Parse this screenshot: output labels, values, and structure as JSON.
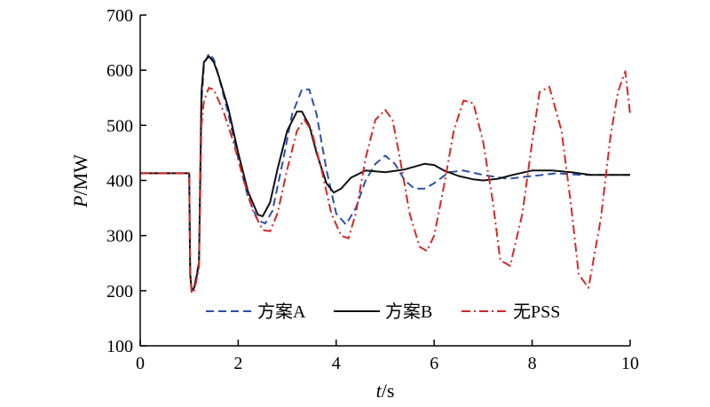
{
  "chart_data": {
    "type": "line",
    "xlabel_var": "t",
    "xlabel_unit": "/s",
    "ylabel_var": "P",
    "ylabel_unit": "/MW",
    "xlim": [
      0,
      10
    ],
    "ylim": [
      100,
      700
    ],
    "xticks": [
      0,
      2,
      4,
      6,
      8,
      10
    ],
    "yticks": [
      100,
      200,
      300,
      400,
      500,
      600,
      700
    ],
    "grid": false,
    "legend_position": "bottom-center",
    "series": [
      {
        "name": "方案A",
        "color": "#2b4fa8",
        "dash": "dashed",
        "x": [
          0,
          1.0,
          1.02,
          1.05,
          1.1,
          1.15,
          1.2,
          1.25,
          1.3,
          1.4,
          1.5,
          1.6,
          1.8,
          2.0,
          2.2,
          2.4,
          2.55,
          2.7,
          2.9,
          3.1,
          3.3,
          3.45,
          3.6,
          3.8,
          4.0,
          4.2,
          4.4,
          4.6,
          4.8,
          5.0,
          5.2,
          5.4,
          5.6,
          5.8,
          6.0,
          6.3,
          6.6,
          7.0,
          7.5,
          8.0,
          8.5,
          9.0,
          9.5,
          10.0
        ],
        "y": [
          413,
          413,
          230,
          200,
          205,
          230,
          250,
          540,
          610,
          630,
          620,
          590,
          520,
          440,
          370,
          328,
          322,
          345,
          430,
          520,
          565,
          565,
          520,
          420,
          340,
          320,
          350,
          400,
          430,
          445,
          430,
          400,
          385,
          385,
          395,
          415,
          418,
          410,
          403,
          408,
          413,
          410,
          410,
          410
        ]
      },
      {
        "name": "方案B",
        "color": "#111111",
        "dash": "solid",
        "x": [
          0,
          1.0,
          1.02,
          1.05,
          1.1,
          1.15,
          1.2,
          1.25,
          1.3,
          1.4,
          1.5,
          1.6,
          1.8,
          2.0,
          2.2,
          2.4,
          2.5,
          2.65,
          2.8,
          3.0,
          3.2,
          3.3,
          3.45,
          3.6,
          3.8,
          3.95,
          4.1,
          4.3,
          4.6,
          5.0,
          5.4,
          5.8,
          6.0,
          6.2,
          6.5,
          6.8,
          7.0,
          7.3,
          7.6,
          8.0,
          8.4,
          8.8,
          9.2,
          9.6,
          10.0
        ],
        "y": [
          413,
          413,
          230,
          200,
          205,
          225,
          250,
          560,
          615,
          625,
          615,
          590,
          530,
          450,
          380,
          338,
          335,
          360,
          420,
          490,
          525,
          525,
          500,
          450,
          395,
          378,
          385,
          405,
          418,
          415,
          420,
          430,
          428,
          418,
          408,
          402,
          400,
          403,
          410,
          418,
          418,
          415,
          410,
          410,
          410
        ]
      },
      {
        "name": "无PSS",
        "color": "#d62728",
        "dash": "dashdot",
        "x": [
          0,
          1.0,
          1.02,
          1.05,
          1.1,
          1.15,
          1.2,
          1.25,
          1.3,
          1.4,
          1.5,
          1.7,
          1.9,
          2.1,
          2.3,
          2.5,
          2.65,
          2.8,
          3.0,
          3.2,
          3.35,
          3.5,
          3.7,
          3.9,
          4.1,
          4.25,
          4.4,
          4.6,
          4.8,
          5.0,
          5.15,
          5.3,
          5.5,
          5.7,
          5.85,
          6.0,
          6.2,
          6.4,
          6.6,
          6.8,
          7.0,
          7.2,
          7.35,
          7.55,
          7.8,
          8.0,
          8.15,
          8.35,
          8.6,
          8.8,
          8.95,
          9.15,
          9.4,
          9.6,
          9.75,
          9.9,
          10.0
        ],
        "y": [
          413,
          413,
          230,
          195,
          200,
          220,
          240,
          500,
          545,
          568,
          565,
          525,
          470,
          405,
          345,
          310,
          308,
          340,
          420,
          490,
          510,
          490,
          420,
          340,
          300,
          295,
          340,
          440,
          510,
          528,
          510,
          440,
          340,
          280,
          272,
          300,
          390,
          490,
          545,
          540,
          470,
          360,
          255,
          245,
          340,
          470,
          560,
          570,
          490,
          350,
          230,
          205,
          330,
          480,
          560,
          598,
          520
        ]
      }
    ]
  }
}
